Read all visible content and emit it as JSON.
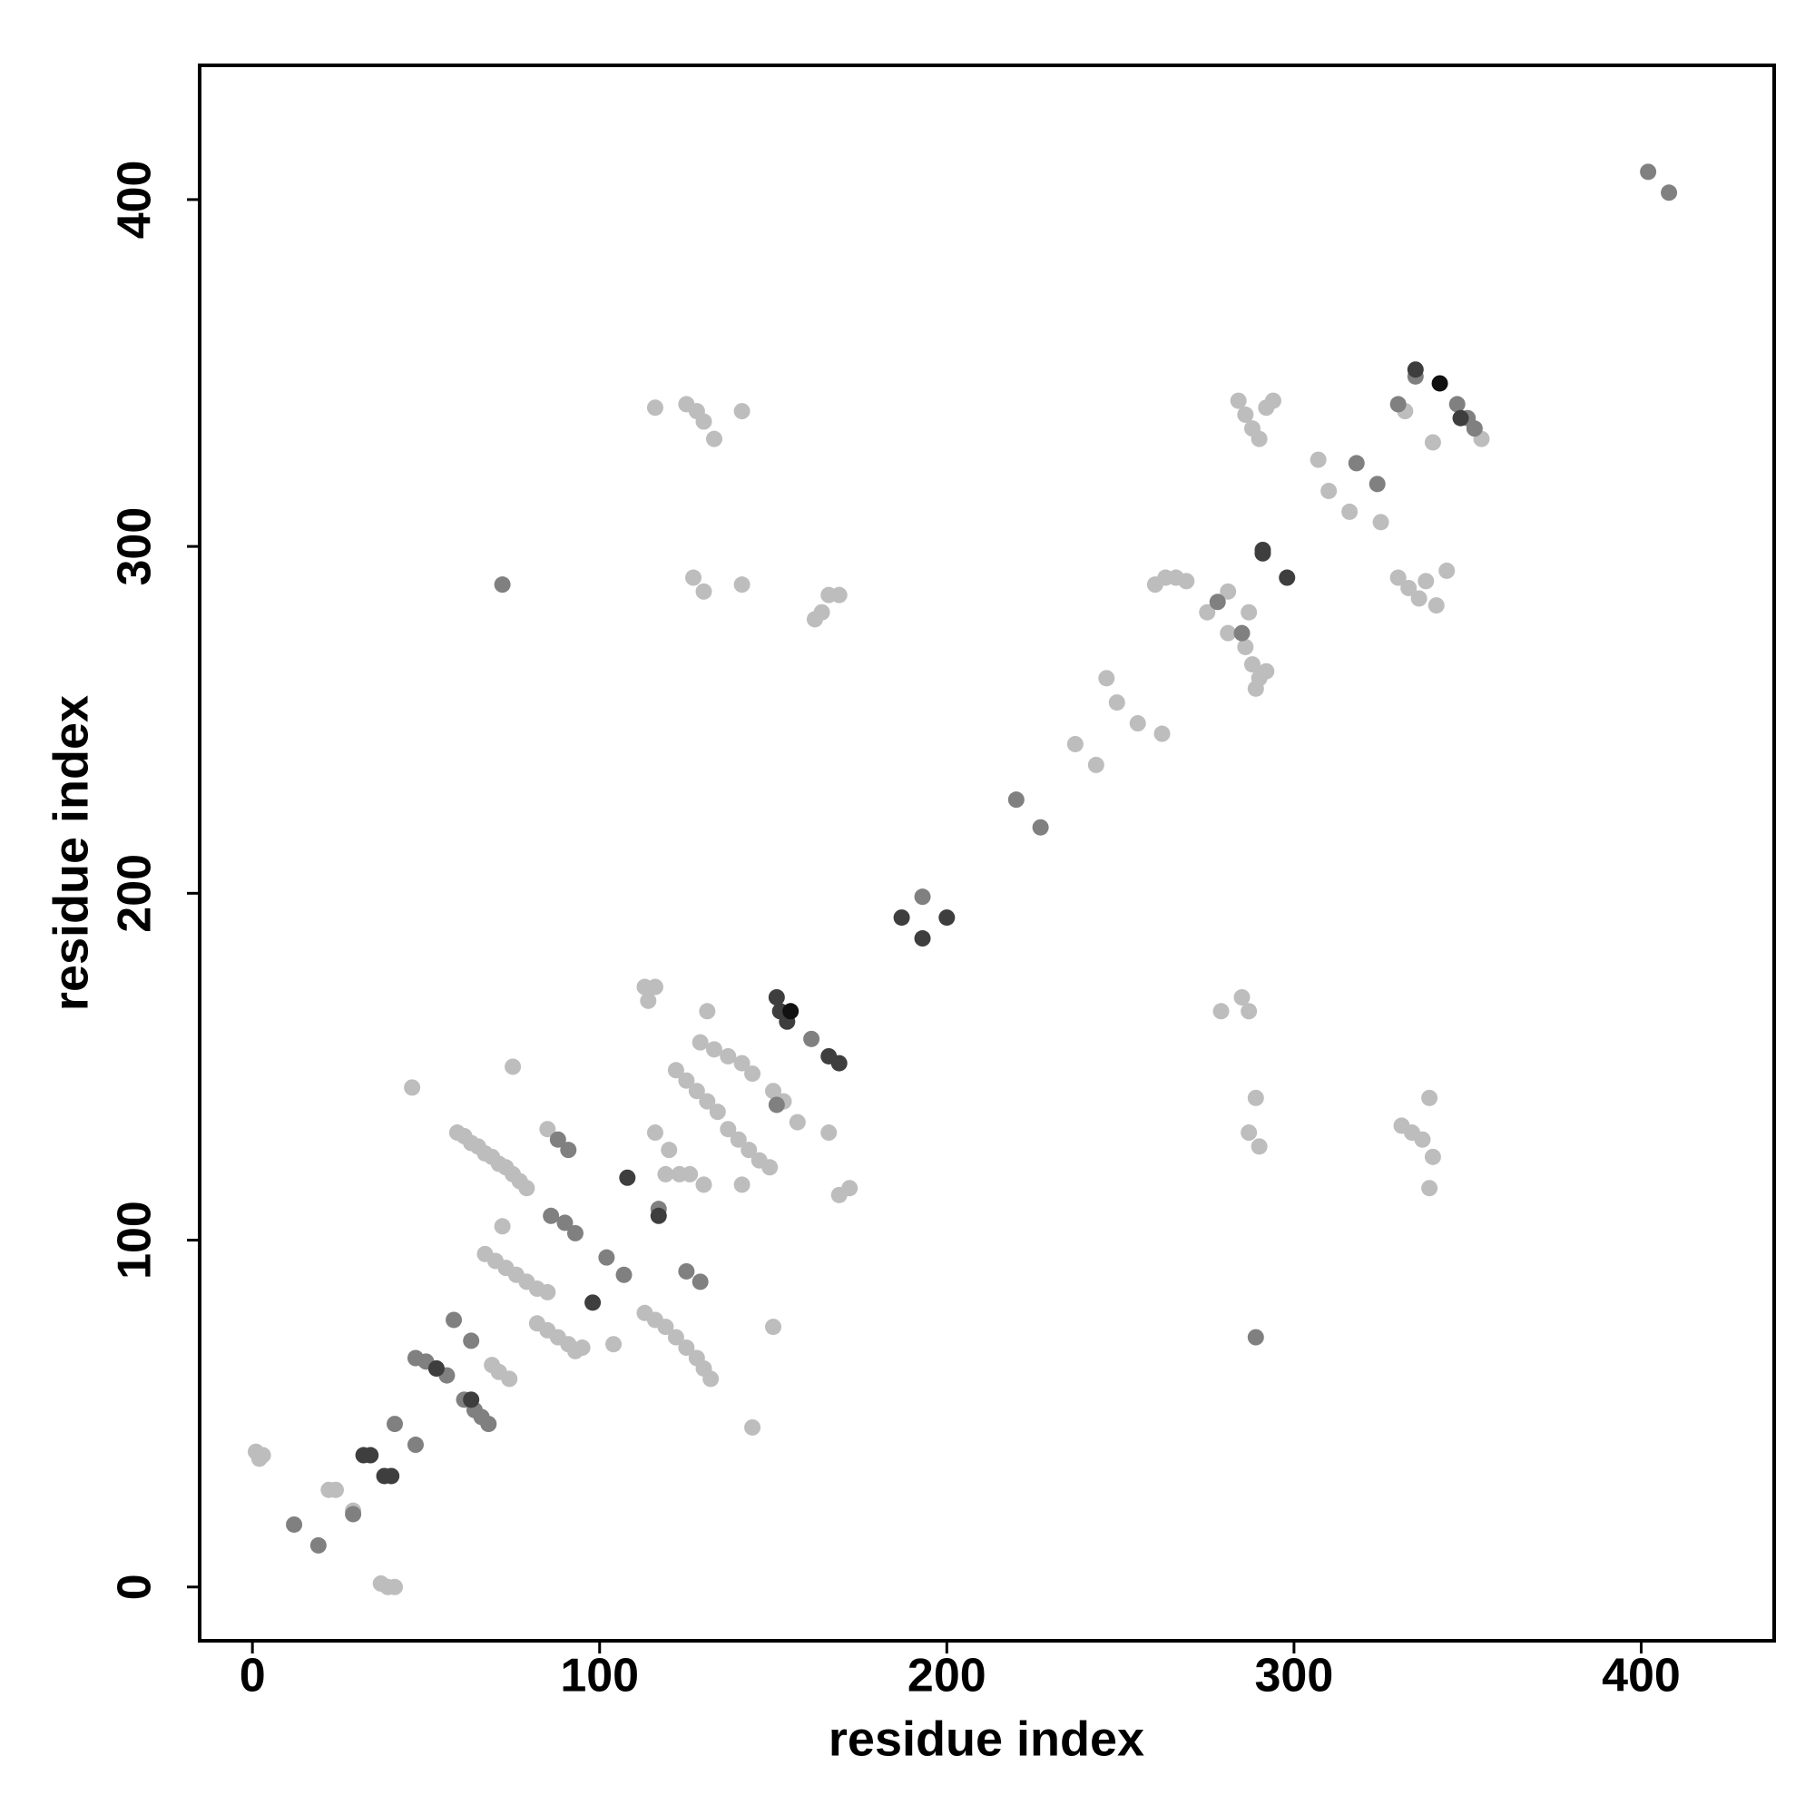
{
  "chart_data": {
    "type": "scatter",
    "x_label": "residue index",
    "y_label": "residue index",
    "xlim": [
      -15.2,
      438.3
    ],
    "ylim": [
      -15.5,
      438.7
    ],
    "xticks": [
      0,
      100,
      200,
      300,
      400
    ],
    "yticks": [
      0,
      100,
      200,
      300,
      400
    ],
    "grid": false,
    "series": [
      {
        "color": "#bdbdbd",
        "x": [
          1,
          3,
          2,
          22,
          24,
          29,
          37,
          39,
          41,
          46,
          72,
          75,
          59,
          61,
          63,
          65,
          67,
          69,
          71,
          73,
          75,
          77,
          79,
          67,
          70,
          73,
          76,
          79,
          82,
          85,
          69,
          71,
          74,
          82,
          85,
          88,
          91,
          93,
          95,
          104,
          85,
          113,
          116,
          119,
          122,
          125,
          128,
          130,
          132,
          113,
          116,
          114,
          116,
          120,
          119,
          123,
          126,
          130,
          122,
          125,
          128,
          131,
          134,
          129,
          133,
          137,
          141,
          144,
          137,
          140,
          143,
          146,
          149,
          141,
          131,
          144,
          150,
          150,
          153,
          157,
          166,
          169,
          172,
          116,
          125,
          128,
          130,
          133,
          141,
          127,
          130,
          141,
          162,
          164,
          166,
          169,
          237,
          243,
          246,
          249,
          255,
          262,
          260,
          263,
          266,
          269,
          275,
          281,
          281,
          287,
          286,
          288,
          290,
          292,
          289,
          284,
          286,
          288,
          290,
          292,
          294,
          307,
          310,
          316,
          325,
          330,
          333,
          336,
          338,
          341,
          344,
          332,
          340,
          354,
          279,
          285,
          287,
          289,
          287,
          290,
          331,
          334,
          337,
          340,
          339,
          339
        ],
        "y": [
          39,
          38,
          37,
          28,
          28,
          22,
          1,
          0,
          0,
          144,
          104,
          150,
          131,
          130,
          128,
          127,
          125,
          124,
          122,
          121,
          119,
          117,
          115,
          96,
          94,
          92,
          90,
          88,
          86,
          85,
          64,
          62,
          60,
          76,
          74,
          72,
          70,
          68,
          69,
          70,
          132,
          79,
          77,
          75,
          72,
          69,
          66,
          63,
          60,
          173,
          173,
          169,
          131,
          126,
          119,
          119,
          119,
          116,
          149,
          146,
          143,
          140,
          137,
          157,
          155,
          153,
          151,
          148,
          132,
          129,
          126,
          123,
          121,
          116,
          166,
          46,
          75,
          143,
          140,
          134,
          131,
          113,
          115,
          340,
          341,
          339,
          336,
          331,
          339,
          291,
          287,
          289,
          279,
          281,
          286,
          286,
          243,
          237,
          262,
          255,
          249,
          246,
          289,
          291,
          291,
          290,
          281,
          287,
          275,
          281,
          271,
          266,
          262,
          264,
          259,
          342,
          338,
          334,
          331,
          340,
          342,
          325,
          316,
          310,
          307,
          291,
          288,
          285,
          290,
          283,
          293,
          339,
          330,
          331,
          166,
          170,
          166,
          141,
          131,
          127,
          133,
          131,
          129,
          124,
          141,
          115
        ]
      },
      {
        "color": "#808080",
        "x": [
          12,
          19,
          29,
          41,
          47,
          72,
          47,
          50,
          53,
          56,
          58,
          63,
          61,
          64,
          66,
          68,
          86,
          90,
          93,
          88,
          91,
          102,
          107,
          117,
          125,
          129,
          278,
          285,
          289,
          220,
          227,
          193,
          402,
          408,
          318,
          324,
          330,
          335,
          347,
          350,
          352,
          151,
          161
        ],
        "y": [
          18,
          12,
          21,
          47,
          41,
          289,
          66,
          65,
          63,
          61,
          77,
          71,
          54,
          51,
          49,
          47,
          107,
          105,
          102,
          129,
          126,
          95,
          90,
          109,
          91,
          88,
          284,
          275,
          72,
          227,
          219,
          199,
          408,
          402,
          324,
          318,
          341,
          349,
          341,
          337,
          334,
          139,
          158
        ]
      },
      {
        "color": "#3e3e3e",
        "x": [
          32,
          34,
          38,
          40,
          53,
          63,
          98,
          108,
          117,
          151,
          152,
          154,
          166,
          169,
          187,
          193,
          200,
          291,
          298,
          335,
          348,
          291
        ],
        "y": [
          38,
          38,
          32,
          32,
          63,
          54,
          82,
          118,
          107,
          170,
          166,
          163,
          153,
          151,
          193,
          187,
          193,
          298,
          291,
          351,
          337,
          299
        ]
      },
      {
        "color": "#111111",
        "x": [
          342,
          155
        ],
        "y": [
          347,
          166
        ]
      }
    ]
  }
}
